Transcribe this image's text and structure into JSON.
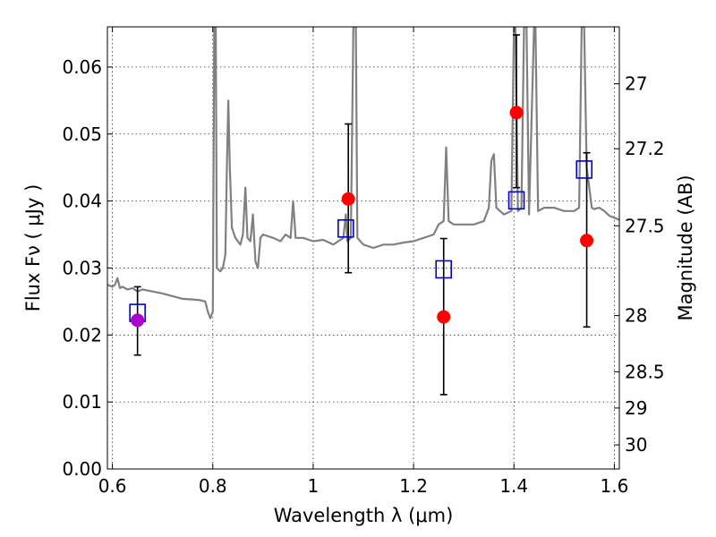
{
  "chart_data": {
    "type": "scatter",
    "xlabel": "Wavelength  λ (μm)",
    "ylabel": "Flux  Fν ( μJy )",
    "ylabel_right": "Magnitude (AB)",
    "xlim": [
      0.59,
      1.61
    ],
    "ylim": [
      0.0,
      0.066
    ],
    "grid": true,
    "x_ticks": [
      0.6,
      0.8,
      1.0,
      1.2,
      1.4,
      1.6
    ],
    "x_tick_labels": [
      "0.6",
      "0.8",
      "1",
      "1.2",
      "1.4",
      "1.6"
    ],
    "y_ticks": [
      0.0,
      0.01,
      0.02,
      0.03,
      0.04,
      0.05,
      0.06
    ],
    "y_tick_labels": [
      "0.00",
      "0.01",
      "0.02",
      "0.03",
      "0.04",
      "0.05",
      "0.06"
    ],
    "right_ticks": [
      {
        "label": "27",
        "flux": 0.0575
      },
      {
        "label": "27.2",
        "flux": 0.0478
      },
      {
        "label": "27.5",
        "flux": 0.0363
      },
      {
        "label": "28",
        "flux": 0.0229
      },
      {
        "label": "28.5",
        "flux": 0.0145
      },
      {
        "label": "29",
        "flux": 0.0091
      },
      {
        "label": "30",
        "flux": 0.0036
      }
    ],
    "colors": {
      "spectrum": "#808080",
      "observed": "#ff0000",
      "observed_first": "#aa00cc",
      "model": "#0000cc",
      "errorbar": "#000000"
    },
    "series": [
      {
        "kind": "observed",
        "marker": "circle",
        "points": [
          {
            "x": 0.65,
            "y": 0.0222,
            "err_low": 0.0052,
            "err_high": 0.005
          },
          {
            "x": 1.07,
            "y": 0.0403,
            "err_low": 0.011,
            "err_high": 0.0112
          },
          {
            "x": 1.26,
            "y": 0.0227,
            "err_low": 0.0116,
            "err_high": 0.0117
          },
          {
            "x": 1.405,
            "y": 0.0532,
            "err_low": 0.0112,
            "err_high": 0.0116
          },
          {
            "x": 1.545,
            "y": 0.0341,
            "err_low": 0.0129,
            "err_high": 0.0131
          }
        ]
      },
      {
        "kind": "model",
        "marker": "square",
        "points": [
          {
            "x": 0.65,
            "y": 0.0233
          },
          {
            "x": 1.065,
            "y": 0.0359
          },
          {
            "x": 1.26,
            "y": 0.0298
          },
          {
            "x": 1.405,
            "y": 0.0401
          },
          {
            "x": 1.54,
            "y": 0.0447
          }
        ]
      },
      {
        "kind": "spectrum",
        "marker": "line",
        "points": [
          [
            0.59,
            0.0275
          ],
          [
            0.6,
            0.0272
          ],
          [
            0.605,
            0.0275
          ],
          [
            0.61,
            0.0285
          ],
          [
            0.615,
            0.027
          ],
          [
            0.62,
            0.0272
          ],
          [
            0.63,
            0.0268
          ],
          [
            0.64,
            0.027
          ],
          [
            0.65,
            0.0265
          ],
          [
            0.66,
            0.0268
          ],
          [
            0.68,
            0.0265
          ],
          [
            0.7,
            0.0262
          ],
          [
            0.72,
            0.0258
          ],
          [
            0.74,
            0.0254
          ],
          [
            0.76,
            0.0253
          ],
          [
            0.775,
            0.0252
          ],
          [
            0.785,
            0.025
          ],
          [
            0.79,
            0.0235
          ],
          [
            0.795,
            0.0225
          ],
          [
            0.8,
            0.0235
          ],
          [
            0.803,
            0.066
          ],
          [
            0.806,
            0.066
          ],
          [
            0.808,
            0.03
          ],
          [
            0.815,
            0.0295
          ],
          [
            0.82,
            0.03
          ],
          [
            0.825,
            0.032
          ],
          [
            0.828,
            0.045
          ],
          [
            0.831,
            0.055
          ],
          [
            0.834,
            0.045
          ],
          [
            0.838,
            0.036
          ],
          [
            0.845,
            0.0345
          ],
          [
            0.855,
            0.0335
          ],
          [
            0.86,
            0.035
          ],
          [
            0.865,
            0.042
          ],
          [
            0.869,
            0.0345
          ],
          [
            0.875,
            0.034
          ],
          [
            0.88,
            0.038
          ],
          [
            0.885,
            0.031
          ],
          [
            0.89,
            0.03
          ],
          [
            0.895,
            0.0345
          ],
          [
            0.9,
            0.035
          ],
          [
            0.92,
            0.0345
          ],
          [
            0.935,
            0.034
          ],
          [
            0.945,
            0.035
          ],
          [
            0.955,
            0.0345
          ],
          [
            0.96,
            0.04
          ],
          [
            0.965,
            0.0345
          ],
          [
            0.98,
            0.0345
          ],
          [
            1.0,
            0.034
          ],
          [
            1.02,
            0.0342
          ],
          [
            1.04,
            0.0335
          ],
          [
            1.05,
            0.034
          ],
          [
            1.06,
            0.0345
          ],
          [
            1.065,
            0.038
          ],
          [
            1.068,
            0.034
          ],
          [
            1.075,
            0.0345
          ],
          [
            1.08,
            0.066
          ],
          [
            1.085,
            0.066
          ],
          [
            1.088,
            0.0345
          ],
          [
            1.1,
            0.0335
          ],
          [
            1.12,
            0.033
          ],
          [
            1.14,
            0.0335
          ],
          [
            1.16,
            0.0335
          ],
          [
            1.18,
            0.0338
          ],
          [
            1.2,
            0.034
          ],
          [
            1.22,
            0.0345
          ],
          [
            1.24,
            0.035
          ],
          [
            1.25,
            0.0365
          ],
          [
            1.26,
            0.037
          ],
          [
            1.265,
            0.048
          ],
          [
            1.27,
            0.037
          ],
          [
            1.28,
            0.0365
          ],
          [
            1.3,
            0.0365
          ],
          [
            1.32,
            0.0365
          ],
          [
            1.34,
            0.037
          ],
          [
            1.35,
            0.039
          ],
          [
            1.355,
            0.046
          ],
          [
            1.36,
            0.047
          ],
          [
            1.365,
            0.039
          ],
          [
            1.38,
            0.038
          ],
          [
            1.395,
            0.0385
          ],
          [
            1.4,
            0.066
          ],
          [
            1.403,
            0.066
          ],
          [
            1.408,
            0.0385
          ],
          [
            1.415,
            0.039
          ],
          [
            1.42,
            0.066
          ],
          [
            1.425,
            0.066
          ],
          [
            1.43,
            0.038
          ],
          [
            1.44,
            0.066
          ],
          [
            1.443,
            0.066
          ],
          [
            1.448,
            0.0385
          ],
          [
            1.46,
            0.039
          ],
          [
            1.48,
            0.039
          ],
          [
            1.5,
            0.0385
          ],
          [
            1.52,
            0.0385
          ],
          [
            1.53,
            0.039
          ],
          [
            1.535,
            0.066
          ],
          [
            1.54,
            0.066
          ],
          [
            1.545,
            0.045
          ],
          [
            1.55,
            0.042
          ],
          [
            1.555,
            0.039
          ],
          [
            1.56,
            0.0388
          ],
          [
            1.57,
            0.039
          ],
          [
            1.58,
            0.0385
          ],
          [
            1.59,
            0.0378
          ],
          [
            1.6,
            0.0375
          ],
          [
            1.61,
            0.0372
          ]
        ]
      }
    ]
  }
}
